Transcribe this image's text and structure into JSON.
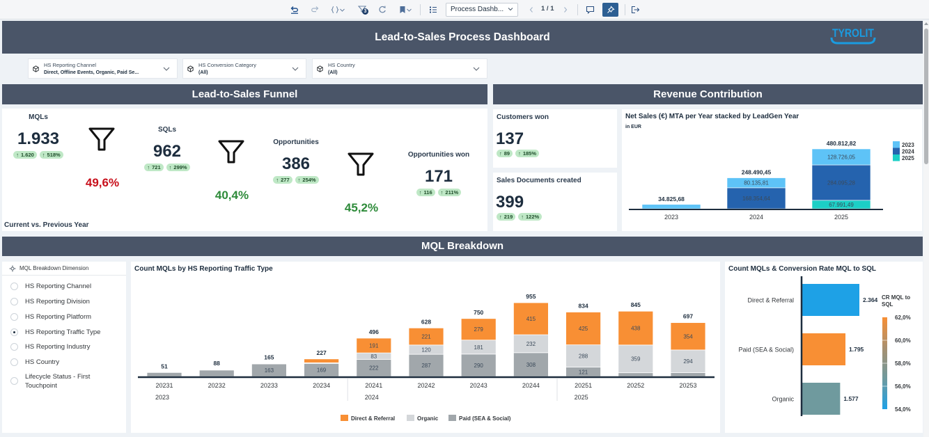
{
  "toolbar": {
    "filter_count": "3",
    "page_select": "Process Dashb...",
    "page_indicator": "1 / 1"
  },
  "header": {
    "title": "Lead-to-Sales Process Dashboard",
    "logo_text": "TYROLIT"
  },
  "filters": [
    {
      "label": "HS Reporting Channel",
      "value": "Direct, Offline Events, Organic, Paid Se..."
    },
    {
      "label": "HS Conversion Category",
      "value": "(All)"
    },
    {
      "label": "HS Country",
      "value": "(All)"
    }
  ],
  "colors": {
    "positive": "#2e8b3a",
    "negative": "#c8101c",
    "header_bg": "#4a5568",
    "logo": "#1a9be0",
    "badge_bg": "#bfe8c6"
  },
  "funnel": {
    "title": "Lead-to-Sales Funnel",
    "stages": [
      {
        "label": "MQLs",
        "value": "1.933",
        "delta_abs": "1.620",
        "delta_pct": "518%"
      },
      {
        "label": "SQLs",
        "value": "962",
        "delta_abs": "721",
        "delta_pct": "299%"
      },
      {
        "label": "Opportunities",
        "value": "386",
        "delta_abs": "277",
        "delta_pct": "254%"
      },
      {
        "label": "Opportunities won",
        "value": "171",
        "delta_abs": "116",
        "delta_pct": "211%"
      }
    ],
    "conversions": [
      {
        "value": "49,6%",
        "status": "negative"
      },
      {
        "value": "40,4%",
        "status": "positive"
      },
      {
        "value": "45,2%",
        "status": "positive"
      }
    ],
    "footnote": "Current vs. Previous Year"
  },
  "revenue": {
    "title": "Revenue Contribution",
    "kpis": [
      {
        "label": "Customers won",
        "value": "137",
        "delta_abs": "89",
        "delta_pct": "185%"
      },
      {
        "label": "Sales Documents created",
        "value": "399",
        "delta_abs": "219",
        "delta_pct": "122%"
      }
    ]
  },
  "mql": {
    "title": "MQL Breakdown",
    "dimension_selector": {
      "title": "MQL Breakdown Dimension",
      "options": [
        "HS Reporting Channel",
        "HS Reporting Division",
        "HS Reporting Platform",
        "HS Reporting Traffic Type",
        "HS Reporting Industry",
        "HS Country",
        "Lifecycle Status - First Touchpoint"
      ],
      "selected": "HS Reporting Traffic Type"
    }
  },
  "chart_data": [
    {
      "id": "net-sales",
      "type": "bar",
      "stacked": true,
      "title": "Net Sales (€) MTA per Year stacked by LeadGen Year",
      "subtitle": "in EUR",
      "xlabel": "",
      "ylabel": "",
      "grid": false,
      "legend": "right",
      "categories": [
        "2023",
        "2024",
        "2025"
      ],
      "series": [
        {
          "name": "2023",
          "color": "#5ec3f7",
          "values": [
            34825.68,
            80135.81,
            128726.05
          ],
          "labels": [
            null,
            "80.135,81",
            "128.726,05"
          ]
        },
        {
          "name": "2024",
          "color": "#2563ae",
          "values": [
            0,
            168354.64,
            284095.28
          ],
          "labels": [
            null,
            "168.354,64",
            "284.095,28"
          ]
        },
        {
          "name": "2025",
          "color": "#1ccfc6",
          "values": [
            0,
            0,
            67991.49
          ],
          "labels": [
            null,
            null,
            "67.991,49"
          ]
        }
      ],
      "totals": [
        "34.825,68",
        "248.490,45",
        "480.812,82"
      ]
    },
    {
      "id": "mql-traffic-type",
      "type": "bar",
      "stacked": true,
      "title": "Count MQLs by HS Reporting Traffic Type",
      "xlabel": "",
      "ylabel": "",
      "grid": false,
      "legend": "bottom",
      "categories": [
        "20231",
        "20232",
        "20233",
        "20234",
        "20241",
        "20242",
        "20243",
        "20244",
        "20251",
        "20252",
        "20253"
      ],
      "groups": [
        {
          "label": "2023",
          "start": 0
        },
        {
          "label": "2024",
          "start": 4
        },
        {
          "label": "2025",
          "start": 8
        }
      ],
      "series": [
        {
          "name": "Direct & Referral",
          "color": "#f88f34",
          "values": [
            0,
            5,
            1,
            50,
            191,
            221,
            279,
            415,
            425,
            438,
            354
          ],
          "labels": [
            null,
            null,
            null,
            null,
            "191",
            "221",
            "279",
            "415",
            "425",
            "438",
            "354"
          ]
        },
        {
          "name": "Organic",
          "color": "#d4d7da",
          "values": [
            0,
            0,
            1,
            8,
            83,
            120,
            181,
            232,
            288,
            359,
            294
          ],
          "labels": [
            null,
            null,
            null,
            null,
            "83",
            "120",
            "181",
            "232",
            "288",
            "359",
            "294"
          ]
        },
        {
          "name": "Paid (SEA & Social)",
          "color": "#a1a7ab",
          "values": [
            51,
            83,
            163,
            169,
            222,
            287,
            290,
            308,
            121,
            48,
            49
          ],
          "labels": [
            null,
            null,
            "163",
            "169",
            "222",
            "287",
            "290",
            "308",
            "121",
            null,
            null
          ]
        }
      ],
      "totals": [
        51,
        88,
        165,
        227,
        496,
        628,
        750,
        955,
        834,
        845,
        697
      ]
    },
    {
      "id": "mql-conversion-rate",
      "type": "bar",
      "orientation": "horizontal",
      "title": "Count MQLs & Conversion Rate MQL to SQL",
      "xlabel": "",
      "ylabel": "",
      "grid": false,
      "legend": "right",
      "categories": [
        "Direct & Referral",
        "Paid (SEA & Social)",
        "Organic"
      ],
      "values": [
        2364,
        1795,
        1577
      ],
      "value_labels": [
        "2.364",
        "1.795",
        "1.577"
      ],
      "conversion_rate_pct": [
        54.0,
        62.0,
        57.0
      ],
      "bar_colors": [
        "#1ea1e6",
        "#f88f34",
        "#6f9a9e"
      ],
      "color_scale": {
        "title": "CR MQL to SQL",
        "range": [
          54,
          62
        ],
        "ticks": [
          "62,0%",
          "60,0%",
          "58,0%",
          "56,0%",
          "54,0%"
        ],
        "stops": [
          "#f88f34",
          "#a89070",
          "#6f9a9e",
          "#1ea1e6"
        ]
      }
    }
  ]
}
